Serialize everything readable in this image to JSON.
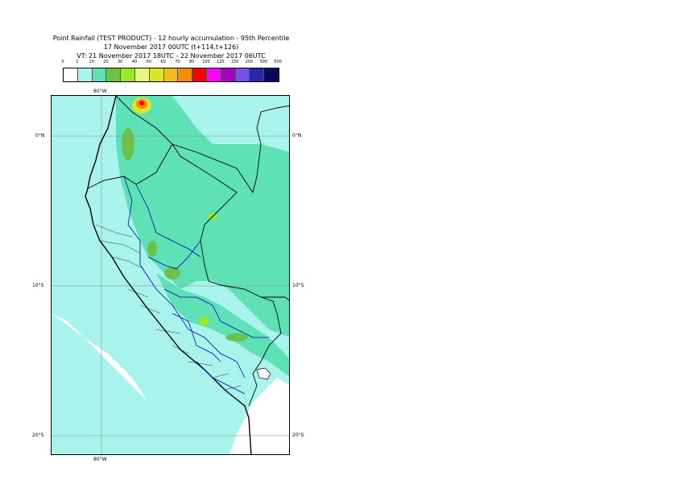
{
  "title": {
    "line1": "Point Rainfall (TEST PRODUCT) - 12 hourly accumulation - 95th Percentile",
    "line2": "17 November 2017 00UTC (t+114,t+126)",
    "line3": "VT: 21 November 2017 18UTC - 22 November 2017 06UTC"
  },
  "legend": {
    "thresholds": [
      "0",
      "1",
      "10",
      "20",
      "30",
      "40",
      "50",
      "60",
      "70",
      "80",
      "100",
      "125",
      "150",
      "200",
      "300",
      "500"
    ],
    "colors": [
      "#ffffff",
      "#a8f4ec",
      "#5ee1b4",
      "#6cc14a",
      "#9ce62c",
      "#e6f882",
      "#dce628",
      "#f0bc1c",
      "#ff8c00",
      "#ff0000",
      "#ff00ff",
      "#a800c0",
      "#7850f0",
      "#2828a8",
      "#0a0a5a"
    ]
  },
  "axes": {
    "lon_top": "80°W",
    "lon_bottom": "80°W",
    "lat_0_left": "0°N",
    "lat_0_right": "0°N",
    "lat_10_left": "10°S",
    "lat_10_right": "10°S",
    "lat_20_left": "20°S",
    "lat_20_right": "20°S"
  }
}
